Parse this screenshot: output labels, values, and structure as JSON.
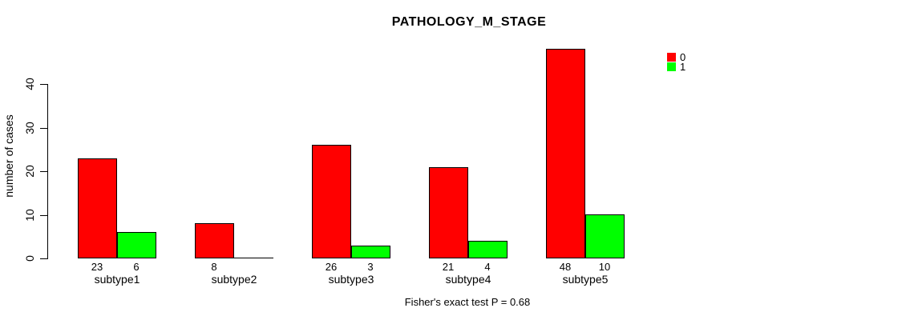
{
  "chart_data": {
    "type": "bar",
    "title": "PATHOLOGY_M_STAGE",
    "ylabel": "number of cases",
    "xlabel": "",
    "categories": [
      "subtype1",
      "subtype2",
      "subtype3",
      "subtype4",
      "subtype5"
    ],
    "series": [
      {
        "name": "0",
        "color": "#ff0000",
        "values": [
          23,
          8,
          26,
          21,
          48
        ]
      },
      {
        "name": "1",
        "color": "#00ff00",
        "values": [
          6,
          0,
          3,
          4,
          10
        ]
      }
    ],
    "yticks": [
      0,
      10,
      20,
      30,
      40
    ],
    "ylim": [
      0,
      40
    ],
    "grid": false,
    "legend_position": "top-right",
    "value_labels_under_bars": true,
    "hide_zero_value_labels": true,
    "bar_border_color": "#000000",
    "footnote": "Fisher's exact test P = 0.68"
  }
}
